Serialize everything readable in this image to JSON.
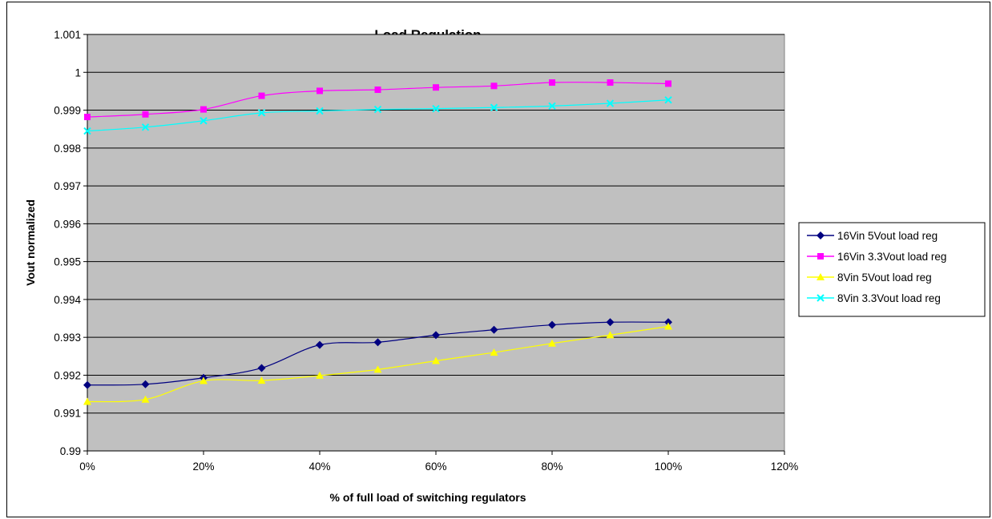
{
  "chart_data": {
    "type": "line",
    "title": "Load Regulation",
    "xlabel": "% of full load of switching regulators",
    "ylabel": "Vout normalized",
    "xlim": [
      0,
      120
    ],
    "ylim": [
      0.99,
      1.001
    ],
    "x_tick_labels": [
      "0%",
      "20%",
      "40%",
      "60%",
      "80%",
      "100%",
      "120%"
    ],
    "y_tick_labels": [
      "0.99",
      "0.991",
      "0.992",
      "0.993",
      "0.994",
      "0.995",
      "0.996",
      "0.997",
      "0.998",
      "0.999",
      "1",
      "1.001"
    ],
    "grid": true,
    "plot_background": "#c0c0c0",
    "legend_position": "right",
    "x": [
      0,
      10,
      20,
      30,
      40,
      50,
      60,
      70,
      80,
      90,
      100
    ],
    "series": [
      {
        "name": "16Vin 5Vout load reg",
        "color": "#000080",
        "marker": "diamond",
        "values": [
          0.99174,
          0.99176,
          0.99193,
          0.99219,
          0.9928,
          0.99287,
          0.99306,
          0.9932,
          0.99333,
          0.9934,
          0.9934
        ]
      },
      {
        "name": "16Vin 3.3Vout load reg",
        "color": "#ff00ff",
        "marker": "square",
        "values": [
          0.99882,
          0.99889,
          0.99902,
          0.99938,
          0.99951,
          0.99954,
          0.9996,
          0.99964,
          0.99973,
          0.99973,
          0.9997
        ]
      },
      {
        "name": "8Vin 5Vout load reg",
        "color": "#ffff00",
        "marker": "triangle",
        "values": [
          0.9913,
          0.99136,
          0.99185,
          0.99186,
          0.99199,
          0.99215,
          0.99238,
          0.9926,
          0.99284,
          0.99306,
          0.99329
        ]
      },
      {
        "name": "8Vin 3.3Vout load reg",
        "color": "#00ffff",
        "marker": "x",
        "values": [
          0.99845,
          0.99855,
          0.99872,
          0.99893,
          0.99898,
          0.99902,
          0.99904,
          0.99907,
          0.99911,
          0.99918,
          0.99927
        ]
      }
    ]
  }
}
